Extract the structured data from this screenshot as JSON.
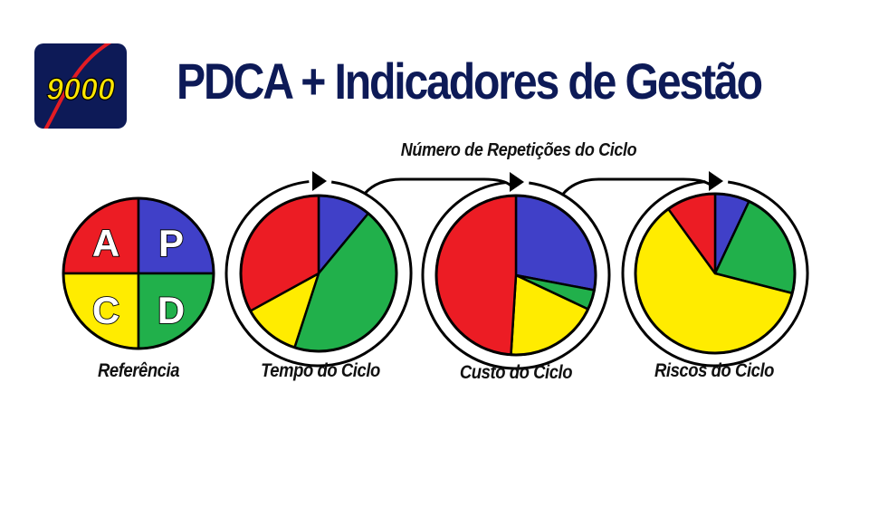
{
  "logo": {
    "text": "9000",
    "bg_color": "#0d1a57",
    "text_color": "#ffe600",
    "accent_color": "#e31c23"
  },
  "title": "PDCA + Indicadores de Gestão",
  "repetitions_label": "Número de Repetições do Ciclo",
  "colors": {
    "A": "#ec1c24",
    "P": "#4040c8",
    "C": "#ffec00",
    "D": "#21b04b",
    "outline": "#000000"
  },
  "reference": {
    "caption": "Referência",
    "quadrants": [
      {
        "letter": "A",
        "color_key": "A"
      },
      {
        "letter": "P",
        "color_key": "P"
      },
      {
        "letter": "C",
        "color_key": "C"
      },
      {
        "letter": "D",
        "color_key": "D"
      }
    ]
  },
  "cycles": [
    {
      "caption": "Tempo do Ciclo",
      "slices": {
        "P": 0.11,
        "D": 0.44,
        "C": 0.12,
        "A": 0.33
      }
    },
    {
      "caption": "Custo do Ciclo",
      "slices": {
        "P": 0.28,
        "D": 0.04,
        "C": 0.19,
        "A": 0.49
      }
    },
    {
      "caption": "Riscos do Ciclo",
      "slices": {
        "P": 0.07,
        "D": 0.22,
        "C": 0.61,
        "A": 0.1
      }
    }
  ]
}
